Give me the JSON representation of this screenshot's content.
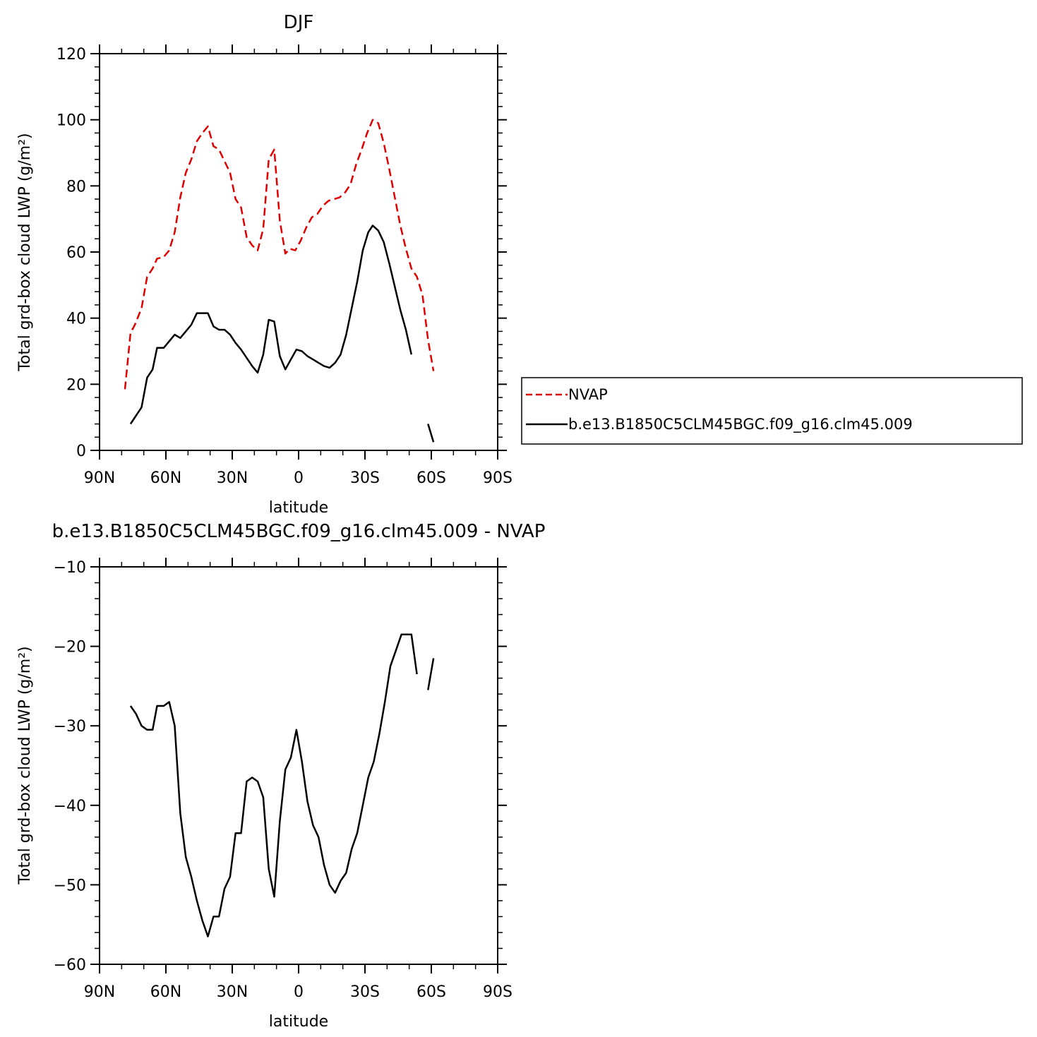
{
  "chart_data": [
    {
      "type": "line",
      "title": "DJF",
      "xlabel": "latitude",
      "ylabel": "Total grd-box cloud LWP (g/m²)",
      "xlim": [
        -90,
        90
      ],
      "ylim": [
        0,
        120
      ],
      "x_ticks": [
        -90,
        -60,
        -30,
        0,
        30,
        60,
        90
      ],
      "x_tick_labels": [
        "90N",
        "60N",
        "30N",
        "0",
        "30S",
        "60S",
        "90S"
      ],
      "y_ticks": [
        0,
        20,
        40,
        60,
        80,
        100,
        120
      ],
      "y_tick_labels": [
        "0",
        "20",
        "40",
        "60",
        "80",
        "100",
        "120"
      ],
      "grid": false,
      "legend": {
        "placement": "right",
        "entries": [
          "NVAP",
          "b.e13.B1850C5CLM45BGC.f09_g16.clm45.009"
        ]
      },
      "series": [
        {
          "name": "NVAP",
          "color": "#e00000",
          "dash": "dashed",
          "segments": [
            [
              [
                -78.5,
                18.5
              ],
              [
                -76,
                35.5
              ],
              [
                -74,
                38
              ],
              [
                -71,
                43
              ],
              [
                -68.5,
                52.5
              ],
              [
                -66,
                55
              ],
              [
                -64,
                58
              ],
              [
                -61,
                58.5
              ],
              [
                -58.5,
                60.5
              ],
              [
                -56,
                66
              ],
              [
                -53.5,
                76.5
              ],
              [
                -51,
                84
              ],
              [
                -48.5,
                88
              ],
              [
                -46,
                93.5
              ],
              [
                -43.5,
                96
              ],
              [
                -41,
                98
              ],
              [
                -38.5,
                92
              ],
              [
                -36,
                91
              ],
              [
                -33.5,
                87.5
              ],
              [
                -31,
                84
              ],
              [
                -28.5,
                76
              ],
              [
                -26,
                73.5
              ],
              [
                -23.5,
                64.5
              ],
              [
                -21,
                62
              ],
              [
                -18.5,
                60.5
              ],
              [
                -16,
                67
              ],
              [
                -13.5,
                88
              ],
              [
                -11,
                91
              ],
              [
                -8.5,
                69.5
              ],
              [
                -6,
                59.5
              ],
              [
                -4,
                61
              ],
              [
                -1.5,
                60.5
              ],
              [
                1,
                63.5
              ],
              [
                3.5,
                67.5
              ],
              [
                6,
                70.5
              ],
              [
                8.5,
                71.5
              ],
              [
                11,
                74
              ],
              [
                13.5,
                75.5
              ],
              [
                16,
                76
              ],
              [
                18.5,
                76.5
              ],
              [
                21,
                78
              ],
              [
                23.5,
                80.5
              ],
              [
                26,
                86.5
              ],
              [
                28.5,
                91
              ],
              [
                31,
                96
              ],
              [
                33.5,
                100
              ],
              [
                36,
                99
              ],
              [
                38.5,
                93
              ],
              [
                41,
                85
              ],
              [
                43.5,
                76.5
              ],
              [
                46,
                68
              ],
              [
                48.5,
                61
              ],
              [
                51,
                55
              ],
              [
                53.5,
                52.5
              ],
              [
                56,
                47
              ],
              [
                58.5,
                33.5
              ],
              [
                61,
                24
              ]
            ]
          ]
        },
        {
          "name": "b.e13.B1850C5CLM45BGC.f09_g16.clm45.009",
          "color": "#000000",
          "dash": "solid",
          "segments": [
            [
              [
                -76,
                8
              ],
              [
                -71,
                13
              ],
              [
                -68.5,
                22
              ],
              [
                -66,
                24.5
              ],
              [
                -64,
                31
              ],
              [
                -61,
                31
              ],
              [
                -58.5,
                33
              ],
              [
                -56,
                35
              ],
              [
                -53.5,
                34
              ],
              [
                -51,
                36
              ],
              [
                -48.5,
                38
              ],
              [
                -46,
                41.5
              ],
              [
                -43.5,
                41.5
              ],
              [
                -41,
                41.5
              ],
              [
                -38.5,
                37.5
              ],
              [
                -36,
                36.5
              ],
              [
                -33.5,
                36.5
              ],
              [
                -31,
                35
              ],
              [
                -28.5,
                32.5
              ],
              [
                -26,
                30.5
              ],
              [
                -23.5,
                28
              ],
              [
                -21,
                25.5
              ],
              [
                -18.5,
                23.5
              ],
              [
                -16,
                29
              ],
              [
                -13.5,
                39.5
              ],
              [
                -11,
                39
              ],
              [
                -8.5,
                28.5
              ],
              [
                -6,
                24.5
              ],
              [
                -3.5,
                27.5
              ],
              [
                -1,
                30.5
              ],
              [
                1.5,
                30
              ],
              [
                4,
                28.5
              ],
              [
                6.5,
                27.5
              ],
              [
                9,
                26.5
              ],
              [
                11.5,
                25.5
              ],
              [
                14,
                25
              ],
              [
                16.5,
                26.5
              ],
              [
                19,
                29
              ],
              [
                21.5,
                35
              ],
              [
                24,
                43
              ],
              [
                26.5,
                51
              ],
              [
                29,
                60.5
              ],
              [
                31.5,
                66
              ],
              [
                33.5,
                68
              ],
              [
                36,
                66.5
              ],
              [
                38.5,
                63
              ],
              [
                41,
                56.5
              ],
              [
                43.5,
                49.5
              ],
              [
                46,
                42.5
              ],
              [
                48.5,
                36.5
              ],
              [
                51,
                29
              ]
            ],
            [
              [
                58.5,
                8
              ],
              [
                61,
                2.5
              ]
            ]
          ]
        }
      ]
    },
    {
      "type": "line",
      "title": "b.e13.B1850C5CLM45BGC.f09_g16.clm45.009 - NVAP",
      "xlabel": "latitude",
      "ylabel": "Total grd-box cloud LWP (g/m²)",
      "xlim": [
        -90,
        90
      ],
      "ylim": [
        -60,
        -10
      ],
      "x_ticks": [
        -90,
        -60,
        -30,
        0,
        30,
        60,
        90
      ],
      "x_tick_labels": [
        "90N",
        "60N",
        "30N",
        "0",
        "30S",
        "60S",
        "90S"
      ],
      "y_ticks": [
        -60,
        -50,
        -40,
        -30,
        -20,
        -10
      ],
      "y_tick_labels": [
        "−60",
        "−50",
        "−40",
        "−30",
        "−20",
        "−10"
      ],
      "grid": false,
      "series": [
        {
          "color": "#000000",
          "dash": "solid",
          "segments": [
            [
              [
                -76,
                -27.5
              ],
              [
                -73.5,
                -28.5
              ],
              [
                -71,
                -30
              ],
              [
                -68.5,
                -30.5
              ],
              [
                -66,
                -30.5
              ],
              [
                -64,
                -27.5
              ],
              [
                -61,
                -27.5
              ],
              [
                -58.5,
                -27
              ],
              [
                -56,
                -30
              ],
              [
                -53.5,
                -41
              ],
              [
                -51,
                -46.5
              ],
              [
                -48.5,
                -49
              ],
              [
                -46,
                -52
              ],
              [
                -43.5,
                -54.5
              ],
              [
                -41,
                -56.5
              ],
              [
                -38.5,
                -54
              ],
              [
                -36,
                -54
              ],
              [
                -33.5,
                -50.5
              ],
              [
                -31,
                -49
              ],
              [
                -28.5,
                -43.5
              ],
              [
                -26,
                -43.5
              ],
              [
                -23.5,
                -37
              ],
              [
                -21,
                -36.5
              ],
              [
                -18.5,
                -37
              ],
              [
                -16,
                -39
              ],
              [
                -13.5,
                -48
              ],
              [
                -11,
                -51.5
              ],
              [
                -8.5,
                -42
              ],
              [
                -6,
                -35.5
              ],
              [
                -3.5,
                -34
              ],
              [
                -1,
                -30.5
              ],
              [
                1.5,
                -34.5
              ],
              [
                4,
                -39.5
              ],
              [
                6.5,
                -42.5
              ],
              [
                9,
                -44
              ],
              [
                11.5,
                -47.5
              ],
              [
                14,
                -50
              ],
              [
                16.5,
                -51
              ],
              [
                19,
                -49.5
              ],
              [
                21.5,
                -48.5
              ],
              [
                24,
                -45.5
              ],
              [
                26.5,
                -43.5
              ],
              [
                29,
                -40
              ],
              [
                31.5,
                -36.5
              ],
              [
                34,
                -34.5
              ],
              [
                36.5,
                -31
              ],
              [
                39,
                -27
              ],
              [
                41.5,
                -22.5
              ],
              [
                44,
                -20.5
              ],
              [
                46.5,
                -18.5
              ],
              [
                49,
                -18.5
              ],
              [
                51,
                -18.5
              ],
              [
                53.5,
                -23.5
              ]
            ],
            [
              [
                58.5,
                -25.5
              ],
              [
                61,
                -21.5
              ]
            ]
          ]
        }
      ]
    }
  ]
}
